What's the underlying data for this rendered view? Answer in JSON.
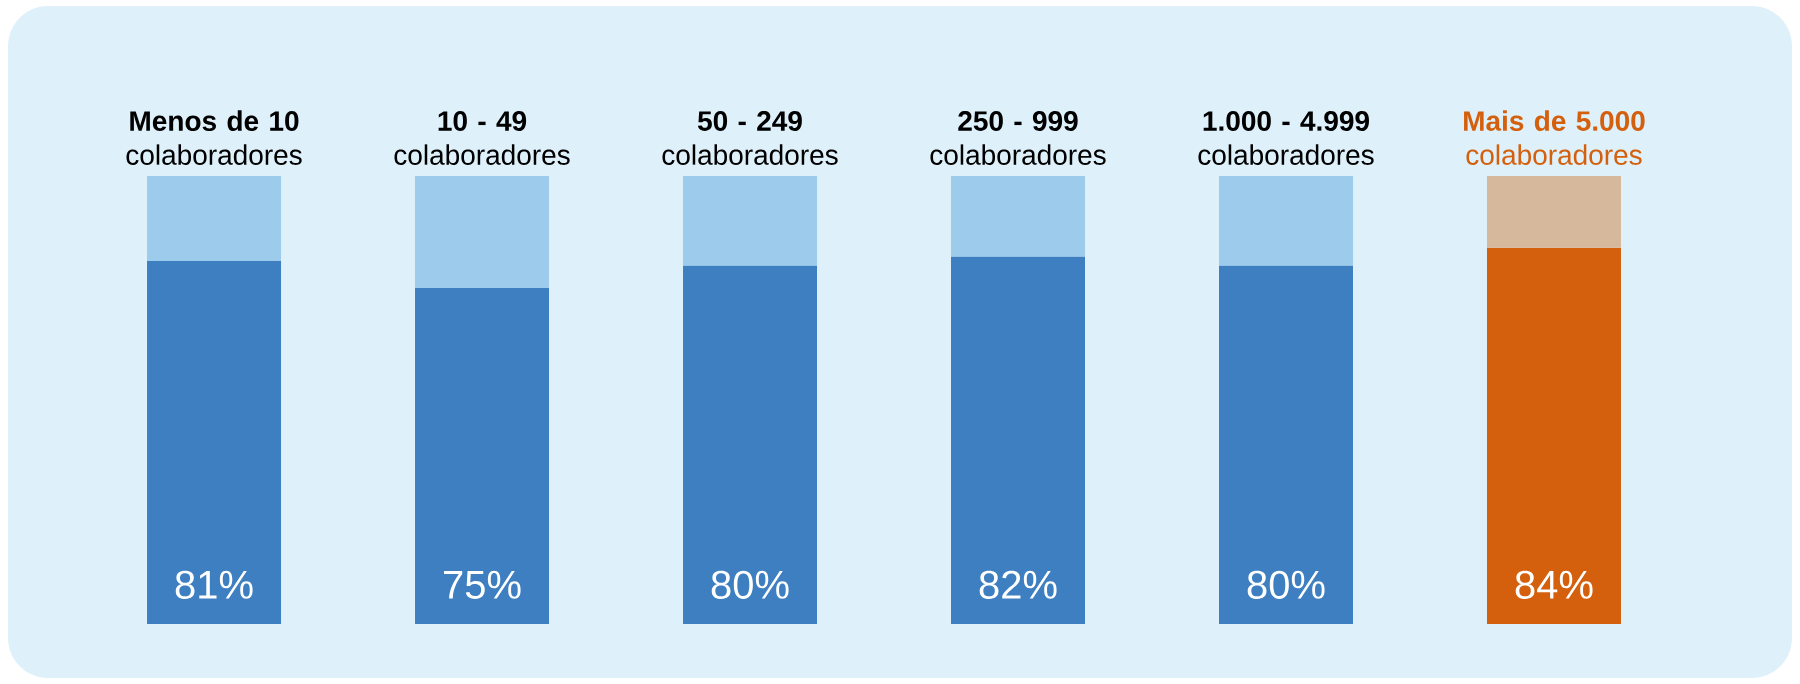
{
  "chart_data": {
    "type": "bar",
    "stacked": true,
    "tick_labels": "x",
    "ylim": [
      0,
      100
    ],
    "categories": [
      "**Menos de 10** colaboradores",
      "**10 - 49** colaboradores",
      "**50 - 249** colaboradores",
      "**250 - 999** colaboradores",
      "**1.000 - 4.999** colaboradores",
      "**Mais de 5.000** colaboradores"
    ],
    "series": [
      {
        "values": [
          81,
          75,
          80,
          82,
          80,
          84
        ],
        "colors": [
          "#3d7fc0",
          "#3d7fc0",
          "#3d7fc0",
          "#3d7fc0",
          "#3d7fc0",
          "#d4600e"
        ],
        "value_labels": [
          "81%",
          "75%",
          "80%",
          "82%",
          "80%",
          "84%"
        ]
      },
      {
        "values": [
          19,
          25,
          20,
          18,
          20,
          16
        ],
        "colors": [
          "#9dcbeb",
          "#9dcbeb",
          "#9dcbeb",
          "#9dcbeb",
          "#9dcbeb",
          "#d6b99c"
        ]
      }
    ]
  }
}
